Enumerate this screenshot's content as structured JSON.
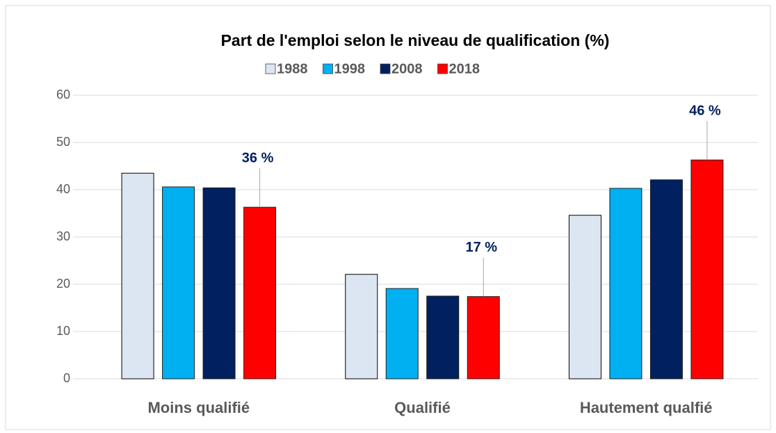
{
  "chart_data": {
    "type": "bar",
    "title": "Part de l'emploi selon le niveau de qualification (%)",
    "categories": [
      "Moins qualifié",
      "Qualifié",
      "Hautement qualfié"
    ],
    "series": [
      {
        "name": "1988",
        "color": "#dce6f2",
        "values": [
          43.5,
          22.1,
          34.6
        ]
      },
      {
        "name": "1998",
        "color": "#00b0f0",
        "values": [
          40.6,
          19.1,
          40.3
        ]
      },
      {
        "name": "2008",
        "color": "#002060",
        "values": [
          40.4,
          17.5,
          42.1
        ]
      },
      {
        "name": "2018",
        "color": "#ff0000",
        "values": [
          36.3,
          17.4,
          46.3
        ],
        "value_labels": [
          "36 %",
          "17 %",
          "46 %"
        ]
      }
    ],
    "ylim": [
      0,
      60
    ],
    "yticks": [
      0,
      10,
      20,
      30,
      40,
      50,
      60
    ],
    "grid": true,
    "legend": "top"
  }
}
